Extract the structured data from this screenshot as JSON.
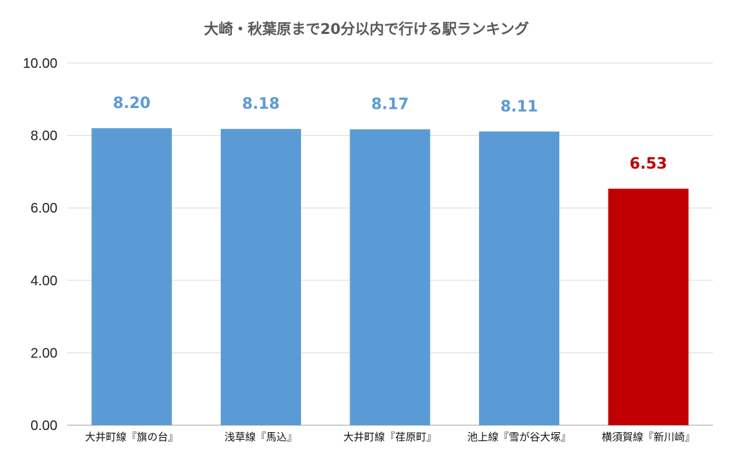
{
  "chart_data": {
    "type": "bar",
    "title": "大崎・秋葉原まで20分以内で行ける駅ランキング",
    "categories": [
      "大井町線『旗の台』",
      "浅草線『馬込』",
      "大井町線『荏原町』",
      "池上線『雪が谷大塚』",
      "横須賀線『新川崎』"
    ],
    "values": [
      8.2,
      8.18,
      8.17,
      8.11,
      6.53
    ],
    "data_labels": [
      "8.20",
      "8.18",
      "8.17",
      "8.11",
      "6.53"
    ],
    "bar_colors": [
      "#5b9bd5",
      "#5b9bd5",
      "#5b9bd5",
      "#5b9bd5",
      "#c00000"
    ],
    "label_colors": [
      "#5b9bd5",
      "#5b9bd5",
      "#5b9bd5",
      "#5b9bd5",
      "#c00000"
    ],
    "ylim": [
      0,
      10
    ],
    "yticks": [
      "0.00",
      "2.00",
      "4.00",
      "6.00",
      "8.00",
      "10.00"
    ],
    "ytick_values": [
      0,
      2,
      4,
      6,
      8,
      10
    ],
    "grid": true,
    "gridline_color": "#d9d9d9",
    "xlabel": "",
    "ylabel": ""
  }
}
